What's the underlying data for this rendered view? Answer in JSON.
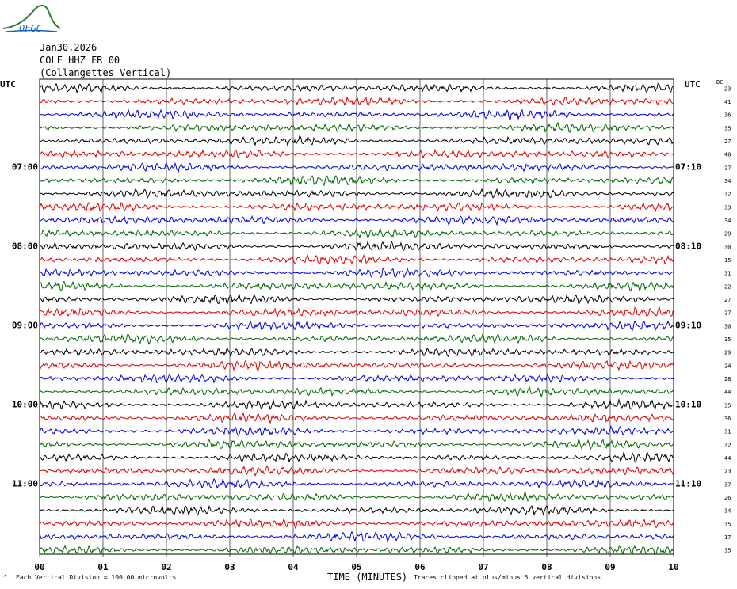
{
  "logo_text": "OFGC",
  "header": {
    "date": "Jan30,2026",
    "station": "COLF HHZ FR 00",
    "location": "(Collangettes Vertical)"
  },
  "utc_label_left": "UTC",
  "utc_label_right": "UTC",
  "dc_label": "DC",
  "footer": {
    "scale": "Each Vertical Division =  100.00 microvolts",
    "clip": "Traces clipped at plus/minus 5 vertical divisions",
    "xlabel": "TIME (MINUTES)"
  },
  "colors": {
    "trace_cycle": [
      "#000000",
      "#dd0000",
      "#0000dd",
      "#006600"
    ],
    "grid": "#000000"
  },
  "chart_data": {
    "type": "line",
    "xlabel": "TIME (MINUTES)",
    "xlim": [
      0,
      10
    ],
    "x_ticks": [
      "00",
      "01",
      "02",
      "03",
      "04",
      "05",
      "06",
      "07",
      "08",
      "09",
      "10"
    ],
    "rows": 36,
    "left_time_labels": [
      {
        "row": 6,
        "label": "07:00"
      },
      {
        "row": 12,
        "label": "08:00"
      },
      {
        "row": 18,
        "label": "09:00"
      },
      {
        "row": 24,
        "label": "10:00"
      },
      {
        "row": 30,
        "label": "11:00"
      }
    ],
    "right_time_labels": [
      {
        "row": 6,
        "label": "07:10"
      },
      {
        "row": 12,
        "label": "08:10"
      },
      {
        "row": 18,
        "label": "09:10"
      },
      {
        "row": 24,
        "label": "10:10"
      },
      {
        "row": 30,
        "label": "11:10"
      }
    ],
    "dc_offsets": [
      23,
      41,
      36,
      35,
      27,
      48,
      27,
      34,
      32,
      33,
      34,
      29,
      30,
      15,
      31,
      22,
      27,
      27,
      30,
      35,
      29,
      24,
      28,
      44,
      35,
      36,
      31,
      32,
      44,
      23,
      37,
      26,
      34,
      35,
      17,
      35
    ]
  }
}
